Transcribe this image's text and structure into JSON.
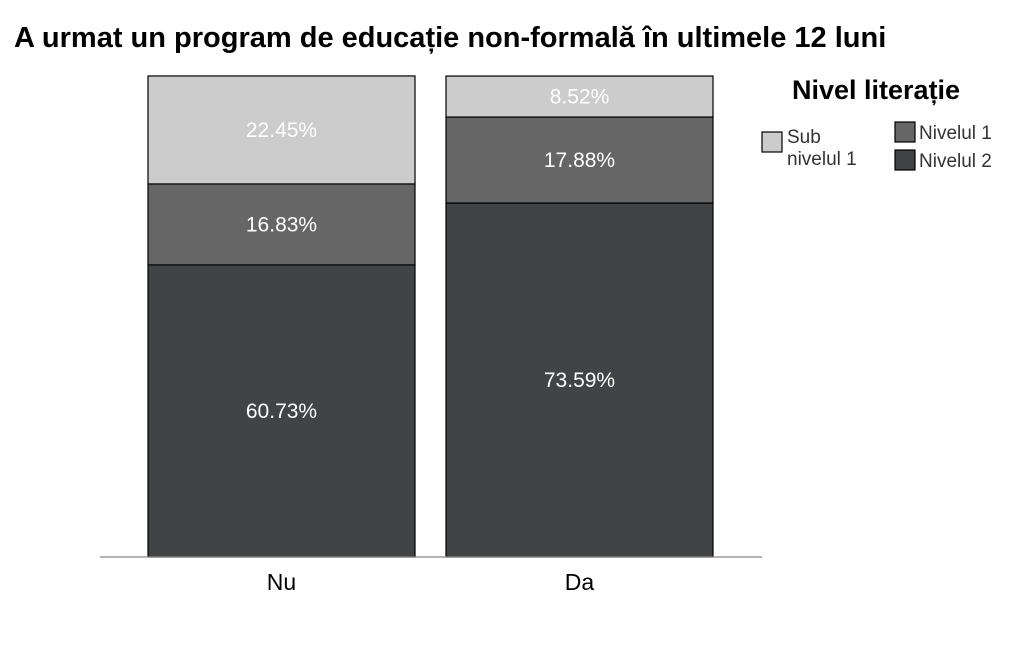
{
  "chart_data": {
    "type": "bar",
    "stacked": true,
    "title": "A urmat un program de educație non-formală în ultimele 12 luni",
    "xlabel": "",
    "ylabel": "",
    "categories": [
      "Nu",
      "Da"
    ],
    "ylim": [
      0,
      100
    ],
    "grid": false,
    "legend": {
      "title": "Nivel literație",
      "placement": "right"
    },
    "series": [
      {
        "name": "Nivelul 2",
        "values": [
          60.73,
          73.59
        ],
        "labels": [
          "60.73%",
          "73.59%"
        ],
        "color": "#424345"
      },
      {
        "name": "Nivelul 1",
        "values": [
          16.83,
          17.88
        ],
        "labels": [
          "16.83%",
          "17.88%"
        ],
        "color": "#666666"
      },
      {
        "name": "Sub nivelul 1",
        "values": [
          22.45,
          8.52
        ],
        "labels": [
          "22.45%",
          "8.52%"
        ],
        "color": "#cccccc"
      }
    ]
  }
}
